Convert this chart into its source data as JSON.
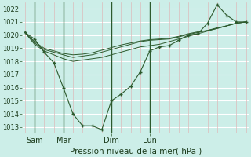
{
  "bg_color": "#cceee8",
  "grid_color_h": "#ffffff",
  "grid_color_v": "#ddbbbb",
  "line_color": "#2d5a2d",
  "marker_color": "#2d5a2d",
  "xlabel": "Pression niveau de la mer( hPa )",
  "ylim": [
    1012.5,
    1022.5
  ],
  "yticks": [
    1013,
    1014,
    1015,
    1016,
    1017,
    1018,
    1019,
    1020,
    1021,
    1022
  ],
  "xtick_labels": [
    "Sam",
    "Mar",
    "Dim",
    "Lun"
  ],
  "xtick_positions": [
    1,
    4,
    9,
    13
  ],
  "vline_positions": [
    1,
    4,
    9,
    13
  ],
  "series0": [
    1020.2,
    1019.7,
    1018.7,
    1017.9,
    1016.0,
    1014.0,
    1013.1,
    1013.1,
    1012.8,
    1015.0,
    1015.5,
    1016.1,
    1017.2,
    1018.8,
    1019.1,
    1019.2,
    1019.6,
    1020.0,
    1020.1,
    1020.9,
    1022.3,
    1021.5,
    1021.0,
    1021.0
  ],
  "series1": [
    1020.2,
    1019.3,
    1018.8,
    1018.5,
    1018.2,
    1018.0,
    1018.1,
    1018.2,
    1018.3,
    1018.5,
    1018.7,
    1018.9,
    1019.1,
    1019.2,
    1019.3,
    1019.5,
    1019.7,
    1019.9,
    1020.1,
    1020.3,
    1020.5,
    1020.7,
    1020.9,
    1021.0
  ],
  "series2": [
    1020.2,
    1019.4,
    1018.9,
    1018.7,
    1018.5,
    1018.3,
    1018.4,
    1018.5,
    1018.7,
    1018.9,
    1019.1,
    1019.3,
    1019.5,
    1019.6,
    1019.65,
    1019.7,
    1019.85,
    1020.05,
    1020.2,
    1020.35,
    1020.5,
    1020.7,
    1020.9,
    1021.0
  ],
  "series3": [
    1020.2,
    1019.5,
    1019.0,
    1018.8,
    1018.6,
    1018.5,
    1018.55,
    1018.65,
    1018.85,
    1019.05,
    1019.25,
    1019.4,
    1019.55,
    1019.65,
    1019.7,
    1019.75,
    1019.9,
    1020.1,
    1020.25,
    1020.35,
    1020.55,
    1020.7,
    1020.9,
    1021.0
  ],
  "n_points": 24,
  "xlim": [
    -0.3,
    23.3
  ]
}
